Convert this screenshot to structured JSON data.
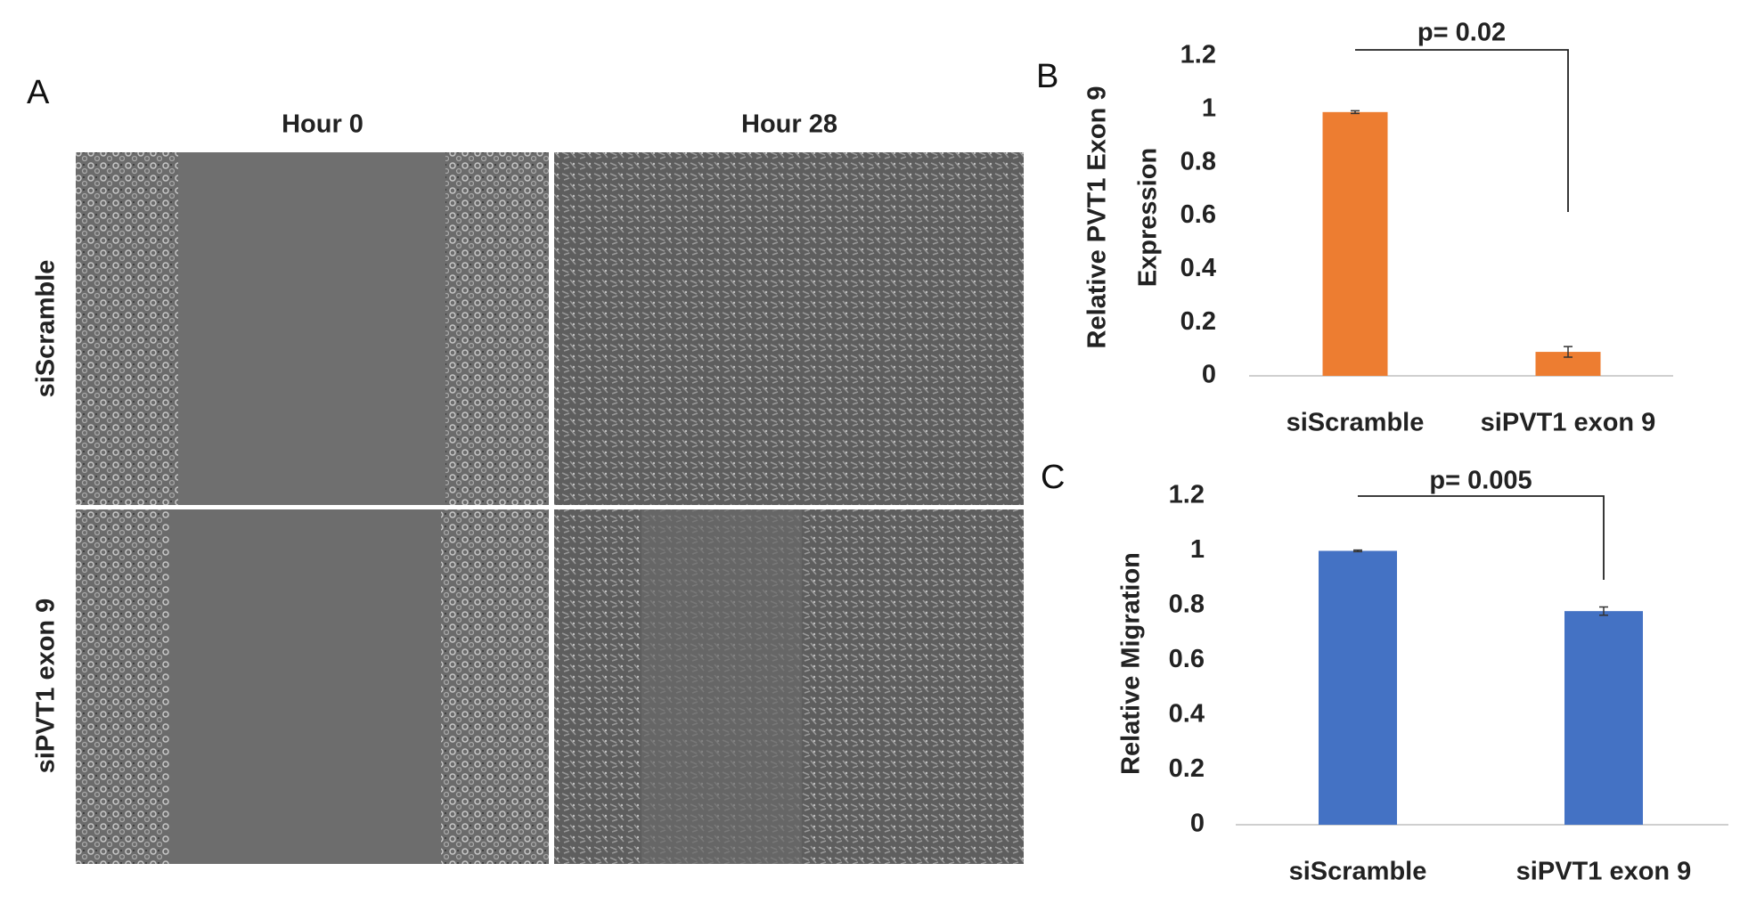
{
  "panel_a": {
    "label": "A",
    "columns": [
      "Hour 0",
      "Hour 28"
    ],
    "rows": [
      "siScramble",
      "siPVT1 exon 9"
    ]
  },
  "chart_data": [
    {
      "type": "bar",
      "panel_label": "B",
      "ylabel": [
        "Relative PVT1 Exon 9",
        "Expression"
      ],
      "categories": [
        "siScramble",
        "siPVT1 exon 9"
      ],
      "values": [
        0.99,
        0.09
      ],
      "errors": [
        0.005,
        0.02
      ],
      "color": "#ed7d31",
      "ylim": [
        0,
        1.2
      ],
      "yticks": [
        0,
        0.2,
        0.4,
        0.6,
        0.8,
        1,
        1.2
      ],
      "annotation": "p= 0.02"
    },
    {
      "type": "bar",
      "panel_label": "C",
      "ylabel": [
        "Relative Migration"
      ],
      "categories": [
        "siScramble",
        "siPVT1 exon 9"
      ],
      "values": [
        1.0,
        0.78
      ],
      "errors": [
        0.003,
        0.015
      ],
      "color": "#4472c4",
      "ylim": [
        0,
        1.2
      ],
      "yticks": [
        0,
        0.2,
        0.4,
        0.6,
        0.8,
        1,
        1.2
      ],
      "annotation": "p= 0.005"
    }
  ]
}
